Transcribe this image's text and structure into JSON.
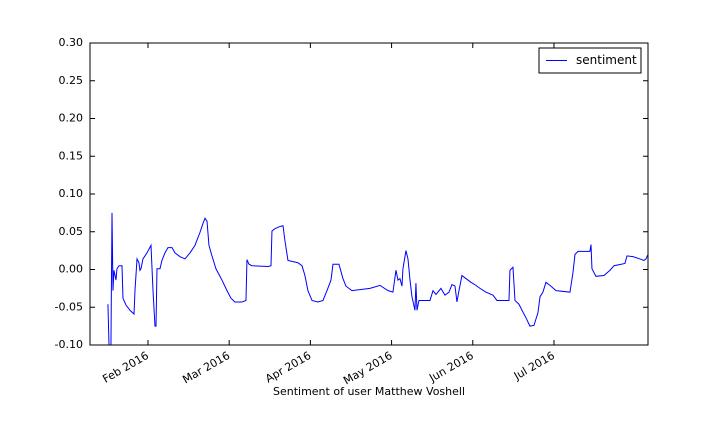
{
  "chart_data": {
    "type": "line",
    "xlabel": "Sentiment of user Matthew Voshell",
    "x": [
      1.507,
      1.52,
      1.544,
      1.557,
      1.569,
      1.581,
      1.606,
      1.618,
      1.643,
      1.68,
      1.692,
      1.729,
      1.778,
      1.828,
      1.84,
      1.865,
      1.889,
      1.901,
      1.914,
      1.938,
      1.988,
      2.037,
      2.062,
      2.086,
      2.099,
      2.111,
      2.148,
      2.172,
      2.209,
      2.246,
      2.296,
      2.333,
      2.394,
      2.456,
      2.517,
      2.579,
      2.64,
      2.677,
      2.702,
      2.727,
      2.751,
      2.788,
      2.837,
      2.911,
      2.973,
      3.022,
      3.071,
      3.158,
      3.207,
      3.219,
      3.244,
      3.281,
      3.478,
      3.515,
      3.527,
      3.564,
      3.626,
      3.663,
      3.687,
      3.724,
      3.847,
      3.897,
      3.933,
      3.97,
      4.02,
      4.094,
      4.155,
      4.204,
      4.254,
      4.278,
      4.352,
      4.401,
      4.438,
      4.512,
      4.734,
      4.857,
      4.956,
      5.017,
      5.054,
      5.079,
      5.103,
      5.128,
      5.14,
      5.177,
      5.202,
      5.227,
      5.251,
      5.288,
      5.3,
      5.313,
      5.337,
      5.473,
      5.51,
      5.547,
      5.608,
      5.658,
      5.707,
      5.744,
      5.781,
      5.805,
      5.83,
      5.867,
      5.916,
      5.978,
      6.039,
      6.089,
      6.163,
      6.249,
      6.298,
      6.446,
      6.458,
      6.495,
      6.52,
      6.569,
      6.606,
      6.655,
      6.704,
      6.754,
      6.803,
      6.828,
      6.864,
      6.901,
      6.951,
      7.025,
      7.197,
      7.234,
      7.259,
      7.296,
      7.443,
      7.456,
      7.468,
      7.517,
      7.616,
      7.69,
      7.739,
      7.874,
      7.899,
      7.973,
      8.059,
      8.108,
      8.133,
      8.158
    ],
    "series": [
      {
        "name": "sentiment",
        "color": "#0000ff",
        "values": [
          -0.046,
          -0.1,
          -0.1,
          0.075,
          -0.028,
          -0.001,
          -0.014,
          0.001,
          0.005,
          0.005,
          -0.038,
          -0.047,
          -0.054,
          -0.059,
          -0.028,
          0.014,
          0.009,
          -0.001,
          0.001,
          0.014,
          0.022,
          0.032,
          -0.028,
          -0.075,
          -0.075,
          0.001,
          0.001,
          0.012,
          0.022,
          0.029,
          0.029,
          0.022,
          0.017,
          0.014,
          0.022,
          0.032,
          0.049,
          0.061,
          0.068,
          0.064,
          0.032,
          0.018,
          0.001,
          -0.014,
          -0.028,
          -0.038,
          -0.043,
          -0.043,
          -0.041,
          0.013,
          0.007,
          0.005,
          0.004,
          0.005,
          0.051,
          0.054,
          0.057,
          0.058,
          0.038,
          0.012,
          0.009,
          0.005,
          -0.008,
          -0.028,
          -0.041,
          -0.043,
          -0.041,
          -0.028,
          -0.014,
          0.007,
          0.007,
          -0.012,
          -0.022,
          -0.028,
          -0.025,
          -0.021,
          -0.028,
          -0.03,
          -0.001,
          -0.014,
          -0.012,
          -0.022,
          0.001,
          0.025,
          0.014,
          -0.014,
          -0.036,
          -0.054,
          -0.018,
          -0.054,
          -0.041,
          -0.041,
          -0.028,
          -0.033,
          -0.025,
          -0.034,
          -0.03,
          -0.02,
          -0.022,
          -0.043,
          -0.028,
          -0.008,
          -0.012,
          -0.017,
          -0.021,
          -0.025,
          -0.03,
          -0.034,
          -0.041,
          -0.041,
          -0.001,
          0.003,
          -0.041,
          -0.046,
          -0.054,
          -0.064,
          -0.075,
          -0.074,
          -0.057,
          -0.036,
          -0.03,
          -0.017,
          -0.021,
          -0.028,
          -0.03,
          -0.004,
          0.02,
          0.024,
          0.024,
          0.033,
          0.001,
          -0.009,
          -0.008,
          -0.001,
          0.005,
          0.008,
          0.018,
          0.017,
          0.014,
          0.012,
          0.014,
          0.02
        ]
      }
    ],
    "xlim": [
      1.286,
      8.158
    ],
    "xticks": [
      {
        "value": 2,
        "label": "Feb 2016"
      },
      {
        "value": 3,
        "label": "Mar 2016"
      },
      {
        "value": 4,
        "label": "Apr 2016"
      },
      {
        "value": 5,
        "label": "May 2016"
      },
      {
        "value": 6,
        "label": "Jun 2016"
      },
      {
        "value": 7,
        "label": "Jul 2016"
      }
    ],
    "ylim": [
      -0.1,
      0.3
    ],
    "yticks": [
      {
        "value": -0.1,
        "label": "-0.10"
      },
      {
        "value": -0.05,
        "label": "-0.05"
      },
      {
        "value": 0,
        "label": "0.00"
      },
      {
        "value": 0.05,
        "label": "0.05"
      },
      {
        "value": 0.1,
        "label": "0.10"
      },
      {
        "value": 0.15,
        "label": "0.15"
      },
      {
        "value": 0.2,
        "label": "0.20"
      },
      {
        "value": 0.25,
        "label": "0.25"
      },
      {
        "value": 0.3,
        "label": "0.30"
      }
    ],
    "grid": false,
    "legend": "upper right"
  }
}
